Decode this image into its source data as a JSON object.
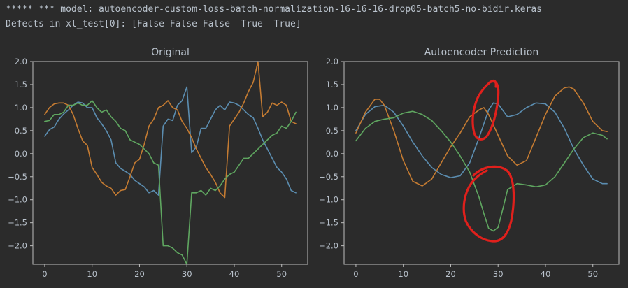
{
  "console": {
    "model_line": "***** *** model: autoencoder-custom-loss-batch-normalization-16-16-16-drop05-batch5-no-bidir.keras",
    "defects_line": "Defects in xl_test[0]: [False False False  True  True]"
  },
  "colors": {
    "blue": "#5b8db0",
    "orange": "#c47b32",
    "green": "#5fa660",
    "annotation": "#e0201c"
  },
  "chart_data": [
    {
      "type": "line",
      "title": "Original",
      "xlim": [
        -2.5,
        55.5
      ],
      "ylim": [
        -2.4,
        2.0
      ],
      "x_ticks": [
        0,
        10,
        20,
        30,
        40,
        50
      ],
      "y_ticks": [
        2.0,
        1.5,
        1.0,
        0.5,
        0.0,
        -0.5,
        -1.0,
        -1.5,
        -2.0
      ],
      "x_tick_labels": [
        "0",
        "10",
        "20",
        "30",
        "40",
        "50"
      ],
      "y_tick_labels": [
        "2.0",
        "1.5",
        "1.0",
        "0.5",
        "0.0",
        "−0.5",
        "−1.0",
        "−1.5",
        "−2.0"
      ],
      "series": [
        {
          "color": "blue",
          "points": [
            [
              0,
              0.38
            ],
            [
              1,
              0.52
            ],
            [
              2,
              0.58
            ],
            [
              3,
              0.75
            ],
            [
              4,
              0.86
            ],
            [
              5,
              0.95
            ],
            [
              6,
              1.05
            ],
            [
              7,
              1.12
            ],
            [
              8,
              1.1
            ],
            [
              9,
              1.0
            ],
            [
              10,
              1.0
            ],
            [
              11,
              0.78
            ],
            [
              12,
              0.65
            ],
            [
              13,
              0.5
            ],
            [
              14,
              0.3
            ],
            [
              15,
              -0.2
            ],
            [
              16,
              -0.32
            ],
            [
              17,
              -0.38
            ],
            [
              18,
              -0.45
            ],
            [
              19,
              -0.58
            ],
            [
              20,
              -0.65
            ],
            [
              21,
              -0.72
            ],
            [
              22,
              -0.85
            ],
            [
              23,
              -0.8
            ],
            [
              24,
              -0.9
            ],
            [
              25,
              0.6
            ],
            [
              26,
              0.75
            ],
            [
              27,
              0.72
            ],
            [
              28,
              1.05
            ],
            [
              29,
              1.15
            ],
            [
              30,
              1.45
            ],
            [
              31,
              0.02
            ],
            [
              32,
              0.15
            ],
            [
              33,
              0.55
            ],
            [
              34,
              0.55
            ],
            [
              35,
              0.75
            ],
            [
              36,
              0.95
            ],
            [
              37,
              1.05
            ],
            [
              38,
              0.95
            ],
            [
              39,
              1.12
            ],
            [
              40,
              1.1
            ],
            [
              41,
              1.05
            ],
            [
              42,
              0.95
            ],
            [
              43,
              0.85
            ],
            [
              44,
              0.78
            ],
            [
              45,
              0.55
            ],
            [
              46,
              0.3
            ],
            [
              47,
              0.1
            ],
            [
              48,
              -0.1
            ],
            [
              49,
              -0.3
            ],
            [
              50,
              -0.4
            ],
            [
              51,
              -0.55
            ],
            [
              52,
              -0.8
            ],
            [
              53,
              -0.85
            ]
          ]
        },
        {
          "color": "orange",
          "points": [
            [
              0,
              0.85
            ],
            [
              1,
              1.0
            ],
            [
              2,
              1.08
            ],
            [
              3,
              1.1
            ],
            [
              4,
              1.1
            ],
            [
              5,
              1.05
            ],
            [
              6,
              0.85
            ],
            [
              7,
              0.55
            ],
            [
              8,
              0.28
            ],
            [
              9,
              0.18
            ],
            [
              10,
              -0.3
            ],
            [
              11,
              -0.45
            ],
            [
              12,
              -0.62
            ],
            [
              13,
              -0.7
            ],
            [
              14,
              -0.75
            ],
            [
              15,
              -0.9
            ],
            [
              16,
              -0.8
            ],
            [
              17,
              -0.78
            ],
            [
              18,
              -0.5
            ],
            [
              19,
              -0.2
            ],
            [
              20,
              -0.12
            ],
            [
              21,
              0.2
            ],
            [
              22,
              0.6
            ],
            [
              23,
              0.75
            ],
            [
              24,
              1.0
            ],
            [
              25,
              1.05
            ],
            [
              26,
              1.15
            ],
            [
              27,
              1.0
            ],
            [
              28,
              0.95
            ],
            [
              29,
              0.7
            ],
            [
              30,
              0.55
            ],
            [
              31,
              0.35
            ],
            [
              32,
              0.1
            ],
            [
              33,
              -0.1
            ],
            [
              34,
              -0.3
            ],
            [
              35,
              -0.45
            ],
            [
              36,
              -0.62
            ],
            [
              37,
              -0.85
            ],
            [
              38,
              -0.95
            ],
            [
              39,
              0.6
            ],
            [
              40,
              0.75
            ],
            [
              41,
              0.9
            ],
            [
              42,
              1.1
            ],
            [
              43,
              1.35
            ],
            [
              44,
              1.55
            ],
            [
              45,
              2.0
            ],
            [
              46,
              0.8
            ],
            [
              47,
              0.9
            ],
            [
              48,
              1.1
            ],
            [
              49,
              1.05
            ],
            [
              50,
              1.12
            ],
            [
              51,
              1.05
            ],
            [
              52,
              0.7
            ],
            [
              53,
              0.65
            ]
          ]
        },
        {
          "color": "green",
          "points": [
            [
              0,
              0.7
            ],
            [
              1,
              0.72
            ],
            [
              2,
              0.85
            ],
            [
              3,
              0.85
            ],
            [
              4,
              0.9
            ],
            [
              5,
              1.05
            ],
            [
              6,
              1.05
            ],
            [
              7,
              1.1
            ],
            [
              8,
              1.05
            ],
            [
              9,
              1.05
            ],
            [
              10,
              1.15
            ],
            [
              11,
              1.0
            ],
            [
              12,
              0.9
            ],
            [
              13,
              0.95
            ],
            [
              14,
              0.8
            ],
            [
              15,
              0.7
            ],
            [
              16,
              0.55
            ],
            [
              17,
              0.5
            ],
            [
              18,
              0.3
            ],
            [
              19,
              0.25
            ],
            [
              20,
              0.2
            ],
            [
              21,
              0.1
            ],
            [
              22,
              0.0
            ],
            [
              23,
              -0.2
            ],
            [
              24,
              -0.25
            ],
            [
              25,
              -2.0
            ],
            [
              26,
              -2.0
            ],
            [
              27,
              -2.05
            ],
            [
              28,
              -2.15
            ],
            [
              29,
              -2.2
            ],
            [
              30,
              -2.4
            ],
            [
              31,
              -0.85
            ],
            [
              32,
              -0.85
            ],
            [
              33,
              -0.8
            ],
            [
              34,
              -0.9
            ],
            [
              35,
              -0.75
            ],
            [
              36,
              -0.8
            ],
            [
              37,
              -0.7
            ],
            [
              38,
              -0.55
            ],
            [
              39,
              -0.45
            ],
            [
              40,
              -0.4
            ],
            [
              41,
              -0.25
            ],
            [
              42,
              -0.1
            ],
            [
              43,
              -0.1
            ],
            [
              44,
              0.0
            ],
            [
              45,
              0.1
            ],
            [
              46,
              0.2
            ],
            [
              47,
              0.3
            ],
            [
              48,
              0.4
            ],
            [
              49,
              0.45
            ],
            [
              50,
              0.6
            ],
            [
              51,
              0.55
            ],
            [
              52,
              0.7
            ],
            [
              53,
              0.9
            ]
          ]
        }
      ]
    },
    {
      "type": "line",
      "title": "Autoencoder Prediction",
      "xlim": [
        -2.5,
        55.5
      ],
      "ylim": [
        -2.4,
        2.0
      ],
      "x_ticks": [
        0,
        10,
        20,
        30,
        40,
        50
      ],
      "y_ticks": [
        2.0,
        1.5,
        1.0,
        0.5,
        0.0,
        -0.5,
        -1.0,
        -1.5,
        -2.0
      ],
      "x_tick_labels": [
        "0",
        "10",
        "20",
        "30",
        "40",
        "50"
      ],
      "y_tick_labels": [
        "2.0",
        "1.5",
        "1.0",
        "0.5",
        "0.0",
        "−0.5",
        "−1.0",
        "−1.5",
        "−2.0"
      ],
      "series": [
        {
          "color": "blue",
          "points": [
            [
              0,
              0.5
            ],
            [
              2,
              0.85
            ],
            [
              4,
              1.02
            ],
            [
              6,
              1.05
            ],
            [
              8,
              0.9
            ],
            [
              10,
              0.6
            ],
            [
              12,
              0.25
            ],
            [
              14,
              -0.05
            ],
            [
              16,
              -0.3
            ],
            [
              18,
              -0.45
            ],
            [
              20,
              -0.52
            ],
            [
              22,
              -0.48
            ],
            [
              24,
              -0.2
            ],
            [
              26,
              0.35
            ],
            [
              28,
              0.95
            ],
            [
              29,
              1.1
            ],
            [
              30,
              1.08
            ],
            [
              32,
              0.8
            ],
            [
              34,
              0.85
            ],
            [
              36,
              1.0
            ],
            [
              38,
              1.1
            ],
            [
              40,
              1.08
            ],
            [
              42,
              0.9
            ],
            [
              44,
              0.55
            ],
            [
              46,
              0.1
            ],
            [
              48,
              -0.25
            ],
            [
              50,
              -0.55
            ],
            [
              52,
              -0.65
            ],
            [
              53,
              -0.65
            ]
          ]
        },
        {
          "color": "orange",
          "points": [
            [
              0,
              0.45
            ],
            [
              2,
              0.9
            ],
            [
              4,
              1.18
            ],
            [
              5,
              1.18
            ],
            [
              6,
              1.05
            ],
            [
              8,
              0.5
            ],
            [
              10,
              -0.15
            ],
            [
              12,
              -0.6
            ],
            [
              14,
              -0.7
            ],
            [
              16,
              -0.55
            ],
            [
              18,
              -0.2
            ],
            [
              20,
              0.15
            ],
            [
              22,
              0.45
            ],
            [
              24,
              0.8
            ],
            [
              26,
              0.95
            ],
            [
              27,
              1.0
            ],
            [
              28,
              0.85
            ],
            [
              30,
              0.4
            ],
            [
              32,
              -0.05
            ],
            [
              34,
              -0.25
            ],
            [
              36,
              -0.15
            ],
            [
              38,
              0.35
            ],
            [
              40,
              0.85
            ],
            [
              42,
              1.25
            ],
            [
              44,
              1.43
            ],
            [
              45,
              1.45
            ],
            [
              46,
              1.4
            ],
            [
              48,
              1.1
            ],
            [
              50,
              0.7
            ],
            [
              52,
              0.5
            ],
            [
              53,
              0.48
            ]
          ]
        },
        {
          "color": "green",
          "points": [
            [
              0,
              0.28
            ],
            [
              2,
              0.55
            ],
            [
              4,
              0.7
            ],
            [
              6,
              0.75
            ],
            [
              8,
              0.78
            ],
            [
              10,
              0.88
            ],
            [
              12,
              0.92
            ],
            [
              14,
              0.85
            ],
            [
              16,
              0.72
            ],
            [
              18,
              0.5
            ],
            [
              20,
              0.25
            ],
            [
              22,
              -0.05
            ],
            [
              24,
              -0.4
            ],
            [
              26,
              -0.95
            ],
            [
              27,
              -1.3
            ],
            [
              28,
              -1.62
            ],
            [
              29,
              -1.68
            ],
            [
              30,
              -1.6
            ],
            [
              31,
              -1.2
            ],
            [
              32,
              -0.78
            ],
            [
              34,
              -0.65
            ],
            [
              36,
              -0.68
            ],
            [
              38,
              -0.72
            ],
            [
              40,
              -0.68
            ],
            [
              42,
              -0.5
            ],
            [
              44,
              -0.2
            ],
            [
              46,
              0.1
            ],
            [
              48,
              0.35
            ],
            [
              50,
              0.45
            ],
            [
              52,
              0.4
            ],
            [
              53,
              0.32
            ]
          ]
        }
      ]
    }
  ]
}
